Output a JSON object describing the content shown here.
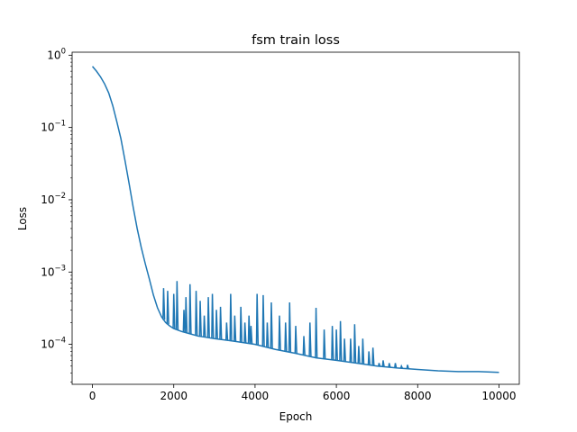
{
  "chart_data": {
    "type": "line",
    "title": "fsm train loss",
    "xlabel": "Epoch",
    "ylabel": "Loss",
    "yscale": "log",
    "xlim": [
      -500,
      10500
    ],
    "ylim": [
      2.8e-05,
      1.1
    ],
    "grid": false,
    "line_color": "#1f77b4",
    "x_ticks": [
      {
        "value": 0,
        "label": "0"
      },
      {
        "value": 2000,
        "label": "2000"
      },
      {
        "value": 4000,
        "label": "4000"
      },
      {
        "value": 6000,
        "label": "6000"
      },
      {
        "value": 8000,
        "label": "8000"
      },
      {
        "value": 10000,
        "label": "10000"
      }
    ],
    "y_ticks": [
      {
        "value": 0.0001,
        "base": "10",
        "exp": "−4"
      },
      {
        "value": 0.001,
        "base": "10",
        "exp": "−3"
      },
      {
        "value": 0.01,
        "base": "10",
        "exp": "−2"
      },
      {
        "value": 0.1,
        "base": "10",
        "exp": "−1"
      },
      {
        "value": 1,
        "base": "10",
        "exp": "0"
      }
    ],
    "series": [
      {
        "x": [
          0,
          100,
          200,
          300,
          400,
          500,
          600,
          700,
          800,
          900,
          1000,
          1100,
          1200,
          1300,
          1400,
          1500,
          1600,
          1700,
          1800,
          1900,
          2000,
          2200,
          2400,
          2600,
          2800,
          3000,
          3500,
          4000,
          4500,
          5000,
          5500,
          6000,
          6500,
          7000,
          7500,
          8000,
          8500,
          9000,
          9500,
          10000
        ],
        "y": [
          0.7,
          0.6,
          0.5,
          0.4,
          0.3,
          0.2,
          0.12,
          0.07,
          0.035,
          0.017,
          0.008,
          0.004,
          0.0022,
          0.0013,
          0.0008,
          0.00048,
          0.00032,
          0.00024,
          0.0002,
          0.00018,
          0.000165,
          0.00015,
          0.00014,
          0.00013,
          0.000125,
          0.00012,
          0.00011,
          0.0001,
          8.5e-05,
          7.5e-05,
          6.5e-05,
          6e-05,
          5.5e-05,
          5e-05,
          4.7e-05,
          4.5e-05,
          4.3e-05,
          4.2e-05,
          4.2e-05,
          4.1e-05
        ]
      }
    ],
    "spikes": [
      {
        "x": 1750,
        "y": 0.0006
      },
      {
        "x": 1850,
        "y": 0.00055
      },
      {
        "x": 2000,
        "y": 0.0005
      },
      {
        "x": 2080,
        "y": 0.00075
      },
      {
        "x": 2250,
        "y": 0.0003
      },
      {
        "x": 2300,
        "y": 0.00045
      },
      {
        "x": 2400,
        "y": 0.00068
      },
      {
        "x": 2550,
        "y": 0.00055
      },
      {
        "x": 2650,
        "y": 0.0004
      },
      {
        "x": 2750,
        "y": 0.00025
      },
      {
        "x": 2850,
        "y": 0.00045
      },
      {
        "x": 2950,
        "y": 0.0005
      },
      {
        "x": 3050,
        "y": 0.0003
      },
      {
        "x": 3150,
        "y": 0.00033
      },
      {
        "x": 3300,
        "y": 0.0002
      },
      {
        "x": 3400,
        "y": 0.0005
      },
      {
        "x": 3500,
        "y": 0.00025
      },
      {
        "x": 3650,
        "y": 0.00033
      },
      {
        "x": 3750,
        "y": 0.0002
      },
      {
        "x": 3850,
        "y": 0.00025
      },
      {
        "x": 3900,
        "y": 0.00018
      },
      {
        "x": 4050,
        "y": 0.0005
      },
      {
        "x": 4200,
        "y": 0.00048
      },
      {
        "x": 4300,
        "y": 0.0002
      },
      {
        "x": 4400,
        "y": 0.00038
      },
      {
        "x": 4600,
        "y": 0.00025
      },
      {
        "x": 4750,
        "y": 0.0002
      },
      {
        "x": 4850,
        "y": 0.00038
      },
      {
        "x": 5000,
        "y": 0.00018
      },
      {
        "x": 5200,
        "y": 0.00013
      },
      {
        "x": 5350,
        "y": 0.0002
      },
      {
        "x": 5500,
        "y": 0.00032
      },
      {
        "x": 5700,
        "y": 0.00016
      },
      {
        "x": 5900,
        "y": 0.00018
      },
      {
        "x": 6000,
        "y": 0.00016
      },
      {
        "x": 6100,
        "y": 0.00021
      },
      {
        "x": 6200,
        "y": 0.00012
      },
      {
        "x": 6350,
        "y": 0.00012
      },
      {
        "x": 6450,
        "y": 0.00019
      },
      {
        "x": 6550,
        "y": 9.5e-05
      },
      {
        "x": 6650,
        "y": 0.00012
      },
      {
        "x": 6800,
        "y": 8e-05
      },
      {
        "x": 6900,
        "y": 9e-05
      },
      {
        "x": 7050,
        "y": 5.5e-05
      },
      {
        "x": 7150,
        "y": 6e-05
      },
      {
        "x": 7300,
        "y": 5.5e-05
      },
      {
        "x": 7450,
        "y": 5.5e-05
      },
      {
        "x": 7600,
        "y": 5e-05
      },
      {
        "x": 7750,
        "y": 5.2e-05
      }
    ]
  }
}
